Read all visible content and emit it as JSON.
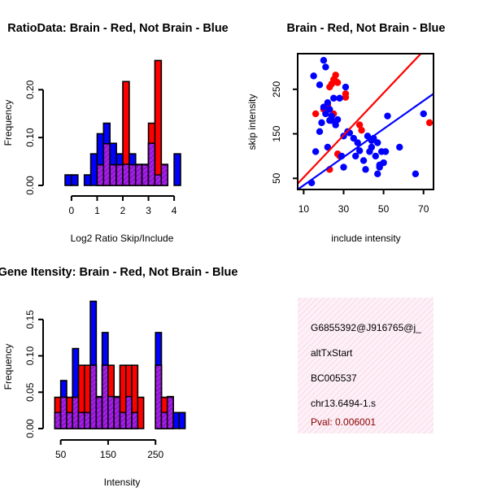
{
  "colors": {
    "brain": "#ff0000",
    "not_brain": "#0000ff",
    "overlap": "#a020f0",
    "hatch": "#800080",
    "axis": "#000000",
    "info_bg": "#fbe3f0",
    "pval": "#8b0000"
  },
  "chart_data": [
    {
      "id": "ratio",
      "type": "bar",
      "title": "RatioData: Brain - Red, Not Brain - Blue",
      "xlabel": "Log2 Ratio Skip/Include",
      "ylabel": "Frequency",
      "xlim": [
        -0.25,
        4.25
      ],
      "ylim": [
        0,
        0.26
      ],
      "xticks": [
        0,
        1,
        2,
        3,
        4
      ],
      "yticks": [
        0,
        0.1,
        0.2
      ],
      "ytick_labels": [
        "0.00",
        "0.10",
        "0.20"
      ],
      "bin_width": 0.25,
      "bin_starts": [
        -0.25,
        0,
        0.25,
        0.5,
        0.75,
        1,
        1.25,
        1.5,
        1.75,
        2,
        2.25,
        2.5,
        2.75,
        3,
        3.25,
        3.5,
        3.75,
        4
      ],
      "series": [
        {
          "name": "Not Brain",
          "color": "blue",
          "values": [
            0.022,
            0.022,
            0,
            0.022,
            0.066,
            0.108,
            0.13,
            0.088,
            0.066,
            0.044,
            0.066,
            0.044,
            0.044,
            0.088,
            0.022,
            0.044,
            0,
            0.066
          ]
        },
        {
          "name": "Brain",
          "color": "red",
          "values": [
            0,
            0,
            0,
            0,
            0,
            0.043,
            0.087,
            0.043,
            0.043,
            0.217,
            0.043,
            0.043,
            0.043,
            0.13,
            0.261,
            0.043,
            0,
            0
          ]
        }
      ]
    },
    {
      "id": "scatter",
      "type": "scatter",
      "title": "Brain - Red, Not Brain - Blue",
      "xlabel": "include intensity",
      "ylabel": "skip intensity",
      "xlim": [
        7,
        75
      ],
      "ylim": [
        25,
        330
      ],
      "xticks": [
        10,
        30,
        50,
        70
      ],
      "yticks": [
        50,
        150,
        250
      ],
      "series": [
        {
          "name": "Brain",
          "color": "red",
          "x": [
            16,
            20,
            21,
            22,
            23,
            24,
            25,
            26,
            26,
            27,
            27,
            28,
            31,
            31,
            38,
            39,
            23,
            25,
            73
          ],
          "y": [
            195,
            205,
            200,
            215,
            255,
            262,
            272,
            268,
            282,
            265,
            105,
            100,
            240,
            232,
            170,
            158,
            70,
            195,
            175
          ]
        },
        {
          "name": "Not Brain",
          "color": "blue",
          "x": [
            20,
            21,
            15,
            18,
            19,
            22,
            23,
            24,
            26,
            27,
            21,
            25,
            28,
            30,
            32,
            33,
            35,
            37,
            38,
            40,
            41,
            42,
            43,
            44,
            45,
            46,
            47,
            48,
            49,
            50,
            51,
            52,
            36,
            30,
            22,
            24,
            18,
            16,
            14,
            48,
            58,
            66,
            70,
            29,
            31,
            20,
            23,
            44,
            47
          ],
          "y": [
            315,
            300,
            280,
            260,
            175,
            220,
            205,
            190,
            170,
            182,
            195,
            230,
            230,
            145,
            155,
            152,
            140,
            130,
            112,
            90,
            70,
            145,
            110,
            120,
            140,
            100,
            60,
            80,
            110,
            85,
            110,
            190,
            100,
            75,
            120,
            180,
            155,
            110,
            40,
            75,
            120,
            60,
            195,
            100,
            255,
            210,
            180,
            135,
            130
          ]
        }
      ],
      "fit_lines": [
        {
          "name": "Brain",
          "color": "red",
          "x": [
            7,
            75
          ],
          "y": [
            38,
            360
          ]
        },
        {
          "name": "Not Brain",
          "color": "blue",
          "x": [
            7,
            75
          ],
          "y": [
            25,
            240
          ]
        }
      ]
    },
    {
      "id": "intensity",
      "type": "bar",
      "title": "Gene Itensity: Brain - Red, Not Brain - Blue",
      "xlabel": "Intensity",
      "ylabel": "Frequency",
      "xlim": [
        30,
        320
      ],
      "ylim": [
        0,
        0.18
      ],
      "xticks": [
        50,
        150,
        250
      ],
      "yticks": [
        0,
        0.05,
        0.1,
        0.15
      ],
      "ytick_labels": [
        "0.00",
        "0.05",
        "0.10",
        "0.15"
      ],
      "bin_width": 12.5,
      "bin_starts": [
        37.5,
        50,
        62.5,
        75,
        87.5,
        100,
        112.5,
        125,
        137.5,
        150,
        162.5,
        175,
        187.5,
        200,
        212.5,
        225,
        237.5,
        250,
        262.5,
        275,
        287.5,
        300
      ],
      "series": [
        {
          "name": "Not Brain",
          "color": "blue",
          "values": [
            0.022,
            0.066,
            0.022,
            0.11,
            0.022,
            0.022,
            0.175,
            0.044,
            0.132,
            0.044,
            0.044,
            0.022,
            0.044,
            0.022,
            0,
            0,
            0,
            0.132,
            0.022,
            0.044,
            0.022,
            0.022
          ]
        },
        {
          "name": "Brain",
          "color": "red",
          "values": [
            0.043,
            0.043,
            0.043,
            0.043,
            0.087,
            0.087,
            0.087,
            0.043,
            0.087,
            0.087,
            0.043,
            0.087,
            0.087,
            0.087,
            0.043,
            0,
            0,
            0.087,
            0.043,
            0.043,
            0,
            0
          ]
        }
      ]
    }
  ],
  "info_panel": {
    "lines": [
      "G6855392@J916765@j_",
      "altTxStart",
      "BC005537",
      "chr13.6494-1.s"
    ],
    "pval": "Pval: 0.006001"
  }
}
